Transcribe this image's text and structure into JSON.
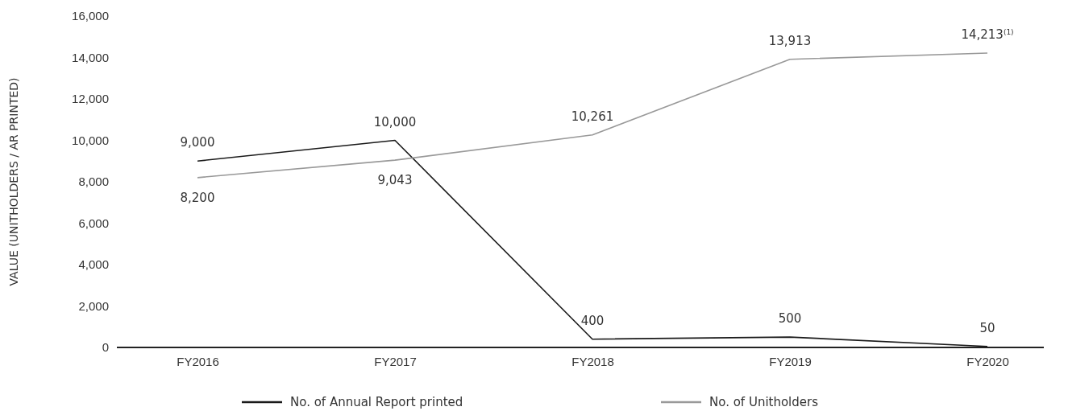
{
  "chart_data": {
    "type": "line",
    "ylabel": "VALUE (UNITHOLDERS / AR PRINTED)",
    "categories": [
      "FY2016",
      "FY2017",
      "FY2018",
      "FY2019",
      "FY2020"
    ],
    "series": [
      {
        "name": "No. of Annual Report printed",
        "color": "#1a1a1a",
        "values": [
          9000,
          10000,
          400,
          500,
          50
        ],
        "value_labels": [
          "9,000",
          "10,000",
          "400",
          "500",
          "50"
        ]
      },
      {
        "name": "No. of Unitholders",
        "color": "#999999",
        "values": [
          8200,
          9043,
          10261,
          13913,
          14213
        ],
        "value_labels": [
          "8,200",
          "9,043",
          "10,261",
          "13,913",
          "14,213$^{(1)}$"
        ]
      }
    ],
    "ylim": [
      0,
      16000
    ],
    "yticks": [
      {
        "value": 0,
        "label": "0"
      },
      {
        "value": 2000,
        "label": "2,000"
      },
      {
        "value": 4000,
        "label": "4,000"
      },
      {
        "value": 6000,
        "label": "6,000"
      },
      {
        "value": 8000,
        "label": "8,000"
      },
      {
        "value": 10000,
        "label": "10,000"
      },
      {
        "value": 12000,
        "label": "12,000"
      },
      {
        "value": 14000,
        "label": "14,000"
      },
      {
        "value": 16000,
        "label": "16,000"
      }
    ],
    "grid": false,
    "legend": "bottom",
    "marker": "none",
    "line_style": "solid"
  }
}
